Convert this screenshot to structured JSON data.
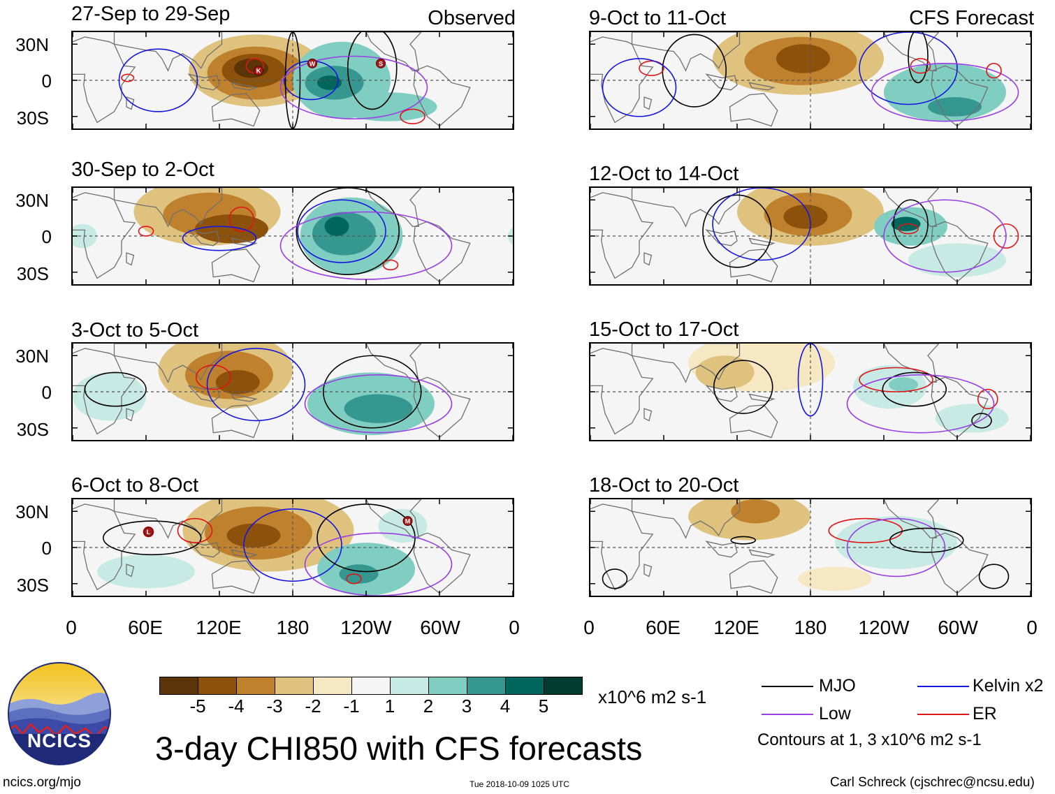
{
  "header": {
    "left_tag": "Observed",
    "right_tag": "CFS Forecast"
  },
  "panels_left": [
    {
      "title": "27-Sep to 29-Sep",
      "storms": [
        {
          "lon": 152,
          "lat": 8,
          "label": "K"
        },
        {
          "lon": 196,
          "lat": 14,
          "label": "W"
        },
        {
          "lon": 252,
          "lat": 14,
          "label": "S"
        }
      ]
    },
    {
      "title": "30-Sep to 2-Oct",
      "storms": []
    },
    {
      "title": "3-Oct to 5-Oct",
      "storms": []
    },
    {
      "title": "6-Oct to 8-Oct",
      "storms": [
        {
          "lon": 62,
          "lat": 13,
          "label": "L"
        },
        {
          "lon": 274,
          "lat": 22,
          "label": "M"
        }
      ]
    }
  ],
  "panels_right": [
    {
      "title": "9-Oct to 11-Oct"
    },
    {
      "title": "12-Oct to 14-Oct"
    },
    {
      "title": "15-Oct to 17-Oct"
    },
    {
      "title": "18-Oct to 20-Oct"
    }
  ],
  "axes": {
    "y_ticks": [
      "30N",
      "0",
      "30S"
    ],
    "x_ticks": [
      "0",
      "60E",
      "120E",
      "180",
      "120W",
      "60W",
      "0"
    ]
  },
  "colorbar": {
    "colors": [
      "#5b3508",
      "#8c510a",
      "#bf812d",
      "#dfc27d",
      "#f6e8c3",
      "#f5f5f5",
      "#c7eae5",
      "#80cdc1",
      "#35978f",
      "#01665e",
      "#003c30"
    ],
    "labels": [
      "-5",
      "-4",
      "-3",
      "-2",
      "-1",
      "1",
      "2",
      "3",
      "4",
      "5"
    ],
    "units": "x10^6 m2 s-1"
  },
  "legend": {
    "items": [
      {
        "name": "MJO",
        "color": "#000000"
      },
      {
        "name": "Kelvin x2",
        "color": "#1515e0"
      },
      {
        "name": "Low",
        "color": "#9a3ee6"
      },
      {
        "name": "ER",
        "color": "#e01515"
      }
    ],
    "note": "Contours at 1, 3 x10^6 m2 s-1"
  },
  "main_title": "3-day CHI850 with CFS forecasts",
  "logo": {
    "text": "NCICS"
  },
  "footer": {
    "left": "ncics.org/mjo",
    "center": "Tue 2018-10-09 1025 UTC",
    "right": "Carl Schreck (cjschrec@ncsu.edu)"
  }
}
